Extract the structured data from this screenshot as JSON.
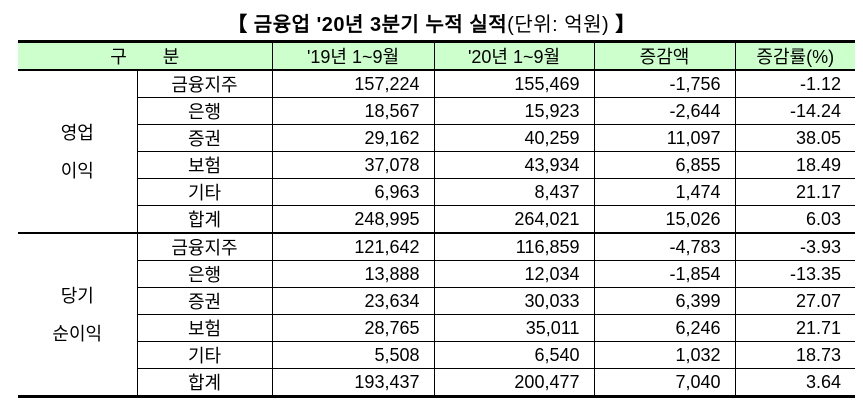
{
  "title": {
    "main": "【 금융업 '20년 3분기 누적 실적",
    "unit": "(단위: 억원)",
    "close": " 】"
  },
  "headers": [
    "구　　분",
    "'19년 1~9월",
    "'20년 1~9월",
    "증감액",
    "증감률(%)"
  ],
  "sections": [
    {
      "label_lines": [
        "영업",
        "이익"
      ],
      "rows": [
        {
          "name": "금융지주",
          "y19": "157,224",
          "y20": "155,469",
          "diff": "-1,756",
          "rate": "-1.12"
        },
        {
          "name": "은행",
          "y19": "18,567",
          "y20": "15,923",
          "diff": "-2,644",
          "rate": "-14.24"
        },
        {
          "name": "증권",
          "y19": "29,162",
          "y20": "40,259",
          "diff": "11,097",
          "rate": "38.05"
        },
        {
          "name": "보험",
          "y19": "37,078",
          "y20": "43,934",
          "diff": "6,855",
          "rate": "18.49"
        },
        {
          "name": "기타",
          "y19": "6,963",
          "y20": "8,437",
          "diff": "1,474",
          "rate": "21.17"
        },
        {
          "name": "합계",
          "y19": "248,995",
          "y20": "264,021",
          "diff": "15,026",
          "rate": "6.03"
        }
      ]
    },
    {
      "label_lines": [
        "당기",
        "순이익"
      ],
      "rows": [
        {
          "name": "금융지주",
          "y19": "121,642",
          "y20": "116,859",
          "diff": "-4,783",
          "rate": "-3.93"
        },
        {
          "name": "은행",
          "y19": "13,888",
          "y20": "12,034",
          "diff": "-1,854",
          "rate": "-13.35"
        },
        {
          "name": "증권",
          "y19": "23,634",
          "y20": "30,033",
          "diff": "6,399",
          "rate": "27.07"
        },
        {
          "name": "보험",
          "y19": "28,765",
          "y20": "35,011",
          "diff": "6,246",
          "rate": "21.71"
        },
        {
          "name": "기타",
          "y19": "5,508",
          "y20": "6,540",
          "diff": "1,032",
          "rate": "18.73"
        },
        {
          "name": "합계",
          "y19": "193,437",
          "y20": "200,477",
          "diff": "7,040",
          "rate": "3.64"
        }
      ]
    }
  ],
  "colors": {
    "header_bg": "#ccffcc"
  }
}
